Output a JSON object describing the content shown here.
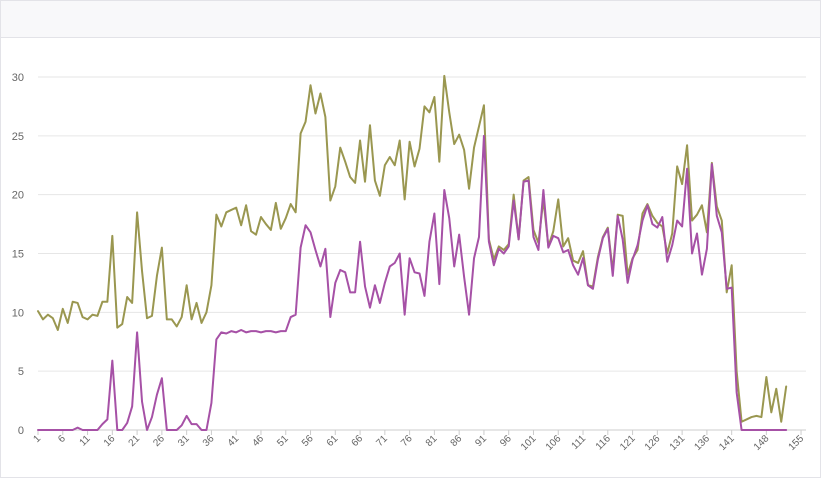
{
  "chart_data": {
    "type": "line",
    "title": "",
    "xlabel": "",
    "ylabel": "",
    "ylim": [
      0,
      30
    ],
    "y_ticks": [
      0,
      5,
      10,
      15,
      20,
      25,
      30
    ],
    "x_range": [
      1,
      156
    ],
    "x_ticks": [
      1,
      6,
      11,
      16,
      21,
      26,
      31,
      36,
      41,
      46,
      51,
      56,
      61,
      66,
      71,
      76,
      81,
      86,
      91,
      96,
      101,
      106,
      111,
      116,
      121,
      126,
      131,
      136,
      141,
      148,
      155
    ],
    "grid": true,
    "legend": "none",
    "series": [
      {
        "color": "#9a9750",
        "points": [
          [
            1,
            10.1
          ],
          [
            2,
            9.4
          ],
          [
            3,
            9.8
          ],
          [
            4,
            9.5
          ],
          [
            5,
            8.5
          ],
          [
            6,
            10.3
          ],
          [
            7,
            9.1
          ],
          [
            8,
            10.9
          ],
          [
            9,
            10.8
          ],
          [
            10,
            9.6
          ],
          [
            11,
            9.4
          ],
          [
            12,
            9.8
          ],
          [
            13,
            9.7
          ],
          [
            14,
            10.9
          ],
          [
            15,
            10.9
          ],
          [
            16,
            16.5
          ],
          [
            17,
            8.7
          ],
          [
            18,
            9.0
          ],
          [
            19,
            11.3
          ],
          [
            20,
            10.8
          ],
          [
            21,
            18.5
          ],
          [
            22,
            13.5
          ],
          [
            23,
            9.5
          ],
          [
            24,
            9.7
          ],
          [
            25,
            13.1
          ],
          [
            26,
            15.5
          ],
          [
            27,
            9.4
          ],
          [
            28,
            9.4
          ],
          [
            29,
            8.8
          ],
          [
            30,
            9.6
          ],
          [
            31,
            12.3
          ],
          [
            32,
            9.4
          ],
          [
            33,
            10.8
          ],
          [
            34,
            9.1
          ],
          [
            35,
            10.0
          ],
          [
            36,
            12.3
          ],
          [
            37,
            18.3
          ],
          [
            38,
            17.3
          ],
          [
            39,
            18.5
          ],
          [
            40,
            18.7
          ],
          [
            41,
            18.9
          ],
          [
            42,
            17.4
          ],
          [
            43,
            19.1
          ],
          [
            44,
            16.9
          ],
          [
            45,
            16.6
          ],
          [
            46,
            18.1
          ],
          [
            47,
            17.5
          ],
          [
            48,
            17.0
          ],
          [
            49,
            19.3
          ],
          [
            50,
            17.1
          ],
          [
            51,
            18.0
          ],
          [
            52,
            19.2
          ],
          [
            53,
            18.5
          ],
          [
            54,
            25.2
          ],
          [
            55,
            26.2
          ],
          [
            56,
            29.3
          ],
          [
            57,
            26.9
          ],
          [
            58,
            28.6
          ],
          [
            59,
            26.6
          ],
          [
            60,
            19.5
          ],
          [
            61,
            20.7
          ],
          [
            62,
            24.0
          ],
          [
            63,
            22.8
          ],
          [
            64,
            21.5
          ],
          [
            65,
            21.0
          ],
          [
            66,
            24.6
          ],
          [
            67,
            21.1
          ],
          [
            68,
            25.9
          ],
          [
            69,
            21.2
          ],
          [
            70,
            19.9
          ],
          [
            71,
            22.5
          ],
          [
            72,
            23.2
          ],
          [
            73,
            22.5
          ],
          [
            74,
            24.6
          ],
          [
            75,
            19.6
          ],
          [
            76,
            24.5
          ],
          [
            77,
            22.4
          ],
          [
            78,
            23.9
          ],
          [
            79,
            27.5
          ],
          [
            80,
            27.0
          ],
          [
            81,
            28.3
          ],
          [
            82,
            22.8
          ],
          [
            83,
            30.1
          ],
          [
            84,
            27.0
          ],
          [
            85,
            24.3
          ],
          [
            86,
            25.1
          ],
          [
            87,
            23.8
          ],
          [
            88,
            20.5
          ],
          [
            89,
            24.0
          ],
          [
            90,
            25.8
          ],
          [
            91,
            27.6
          ],
          [
            92,
            16.2
          ],
          [
            93,
            14.5
          ],
          [
            94,
            15.6
          ],
          [
            95,
            15.3
          ],
          [
            96,
            15.8
          ],
          [
            97,
            20.0
          ],
          [
            98,
            16.2
          ],
          [
            99,
            21.2
          ],
          [
            100,
            21.5
          ],
          [
            101,
            17.0
          ],
          [
            102,
            15.9
          ],
          [
            103,
            19.6
          ],
          [
            104,
            15.6
          ],
          [
            105,
            16.9
          ],
          [
            106,
            19.6
          ],
          [
            107,
            15.6
          ],
          [
            108,
            16.3
          ],
          [
            109,
            14.4
          ],
          [
            110,
            14.2
          ],
          [
            111,
            15.2
          ],
          [
            112,
            12.3
          ],
          [
            113,
            12.2
          ],
          [
            114,
            14.7
          ],
          [
            115,
            16.4
          ],
          [
            116,
            17.2
          ],
          [
            117,
            13.5
          ],
          [
            118,
            18.3
          ],
          [
            119,
            18.2
          ],
          [
            120,
            13.2
          ],
          [
            121,
            14.6
          ],
          [
            122,
            15.3
          ],
          [
            123,
            18.4
          ],
          [
            124,
            19.2
          ],
          [
            125,
            18.2
          ],
          [
            126,
            17.6
          ],
          [
            127,
            17.3
          ],
          [
            128,
            15.0
          ],
          [
            129,
            16.7
          ],
          [
            130,
            22.4
          ],
          [
            131,
            20.9
          ],
          [
            132,
            24.2
          ],
          [
            133,
            17.8
          ],
          [
            134,
            18.3
          ],
          [
            135,
            19.1
          ],
          [
            136,
            16.8
          ],
          [
            137,
            22.7
          ],
          [
            138,
            19.0
          ],
          [
            139,
            17.8
          ],
          [
            140,
            11.7
          ],
          [
            141,
            14.0
          ],
          [
            142,
            5.0
          ],
          [
            143,
            0.7
          ],
          [
            144,
            0.9
          ],
          [
            145,
            1.1
          ],
          [
            146,
            1.2
          ],
          [
            147,
            1.1
          ],
          [
            148,
            4.5
          ],
          [
            149,
            1.5
          ],
          [
            150,
            3.5
          ],
          [
            151,
            0.7
          ],
          [
            152,
            3.7
          ]
        ]
      },
      {
        "color": "#a651a6",
        "points": [
          [
            1,
            0
          ],
          [
            2,
            0
          ],
          [
            3,
            0
          ],
          [
            4,
            0
          ],
          [
            5,
            0
          ],
          [
            6,
            0
          ],
          [
            7,
            0
          ],
          [
            8,
            0
          ],
          [
            9,
            0.2
          ],
          [
            10,
            0
          ],
          [
            11,
            0
          ],
          [
            12,
            0
          ],
          [
            13,
            0
          ],
          [
            14,
            0.5
          ],
          [
            15,
            0.9
          ],
          [
            16,
            5.9
          ],
          [
            17,
            0
          ],
          [
            18,
            0
          ],
          [
            19,
            0.6
          ],
          [
            20,
            2.0
          ],
          [
            21,
            8.3
          ],
          [
            22,
            2.4
          ],
          [
            23,
            0
          ],
          [
            24,
            1.1
          ],
          [
            25,
            3.0
          ],
          [
            26,
            4.4
          ],
          [
            27,
            0
          ],
          [
            28,
            0
          ],
          [
            29,
            0
          ],
          [
            30,
            0.4
          ],
          [
            31,
            1.2
          ],
          [
            32,
            0.5
          ],
          [
            33,
            0.5
          ],
          [
            34,
            0
          ],
          [
            35,
            0
          ],
          [
            36,
            2.3
          ],
          [
            37,
            7.7
          ],
          [
            38,
            8.3
          ],
          [
            39,
            8.2
          ],
          [
            40,
            8.4
          ],
          [
            41,
            8.3
          ],
          [
            42,
            8.5
          ],
          [
            43,
            8.3
          ],
          [
            44,
            8.4
          ],
          [
            45,
            8.4
          ],
          [
            46,
            8.3
          ],
          [
            47,
            8.4
          ],
          [
            48,
            8.4
          ],
          [
            49,
            8.3
          ],
          [
            50,
            8.4
          ],
          [
            51,
            8.4
          ],
          [
            52,
            9.6
          ],
          [
            53,
            9.8
          ],
          [
            54,
            15.5
          ],
          [
            55,
            17.4
          ],
          [
            56,
            16.8
          ],
          [
            57,
            15.3
          ],
          [
            58,
            13.9
          ],
          [
            59,
            15.4
          ],
          [
            60,
            9.6
          ],
          [
            61,
            12.5
          ],
          [
            62,
            13.6
          ],
          [
            63,
            13.4
          ],
          [
            64,
            11.7
          ],
          [
            65,
            11.7
          ],
          [
            66,
            16.0
          ],
          [
            67,
            12.2
          ],
          [
            68,
            10.4
          ],
          [
            69,
            12.3
          ],
          [
            70,
            10.8
          ],
          [
            71,
            12.5
          ],
          [
            72,
            13.9
          ],
          [
            73,
            14.2
          ],
          [
            74,
            15.0
          ],
          [
            75,
            9.8
          ],
          [
            76,
            14.6
          ],
          [
            77,
            13.4
          ],
          [
            78,
            13.3
          ],
          [
            79,
            11.4
          ],
          [
            80,
            16.0
          ],
          [
            81,
            18.4
          ],
          [
            82,
            12.4
          ],
          [
            83,
            20.4
          ],
          [
            84,
            18.0
          ],
          [
            85,
            13.9
          ],
          [
            86,
            16.6
          ],
          [
            87,
            13.0
          ],
          [
            88,
            9.8
          ],
          [
            89,
            14.6
          ],
          [
            90,
            16.4
          ],
          [
            91,
            25.0
          ],
          [
            92,
            16.0
          ],
          [
            93,
            14.0
          ],
          [
            94,
            15.4
          ],
          [
            95,
            15.0
          ],
          [
            96,
            15.6
          ],
          [
            97,
            19.5
          ],
          [
            98,
            16.2
          ],
          [
            99,
            21.1
          ],
          [
            100,
            21.2
          ],
          [
            101,
            16.4
          ],
          [
            102,
            15.3
          ],
          [
            103,
            20.4
          ],
          [
            104,
            15.5
          ],
          [
            105,
            16.5
          ],
          [
            106,
            16.3
          ],
          [
            107,
            15.1
          ],
          [
            108,
            15.3
          ],
          [
            109,
            14.0
          ],
          [
            110,
            13.2
          ],
          [
            111,
            14.6
          ],
          [
            112,
            12.3
          ],
          [
            113,
            12.0
          ],
          [
            114,
            14.5
          ],
          [
            115,
            16.3
          ],
          [
            116,
            17.1
          ],
          [
            117,
            13.1
          ],
          [
            118,
            18.2
          ],
          [
            119,
            16.2
          ],
          [
            120,
            12.5
          ],
          [
            121,
            14.5
          ],
          [
            122,
            15.7
          ],
          [
            123,
            17.8
          ],
          [
            124,
            19.1
          ],
          [
            125,
            17.5
          ],
          [
            126,
            17.2
          ],
          [
            127,
            18.1
          ],
          [
            128,
            14.3
          ],
          [
            129,
            15.7
          ],
          [
            130,
            17.8
          ],
          [
            131,
            17.3
          ],
          [
            132,
            22.2
          ],
          [
            133,
            15.0
          ],
          [
            134,
            16.7
          ],
          [
            135,
            13.2
          ],
          [
            136,
            15.4
          ],
          [
            137,
            22.6
          ],
          [
            138,
            18.2
          ],
          [
            139,
            16.8
          ],
          [
            140,
            12.0
          ],
          [
            141,
            12.1
          ],
          [
            142,
            3.2
          ],
          [
            143,
            0
          ],
          [
            144,
            0
          ],
          [
            145,
            0
          ],
          [
            146,
            0
          ],
          [
            147,
            0
          ],
          [
            148,
            0
          ],
          [
            149,
            0
          ],
          [
            150,
            0
          ],
          [
            151,
            0
          ],
          [
            152,
            0
          ]
        ]
      }
    ]
  }
}
